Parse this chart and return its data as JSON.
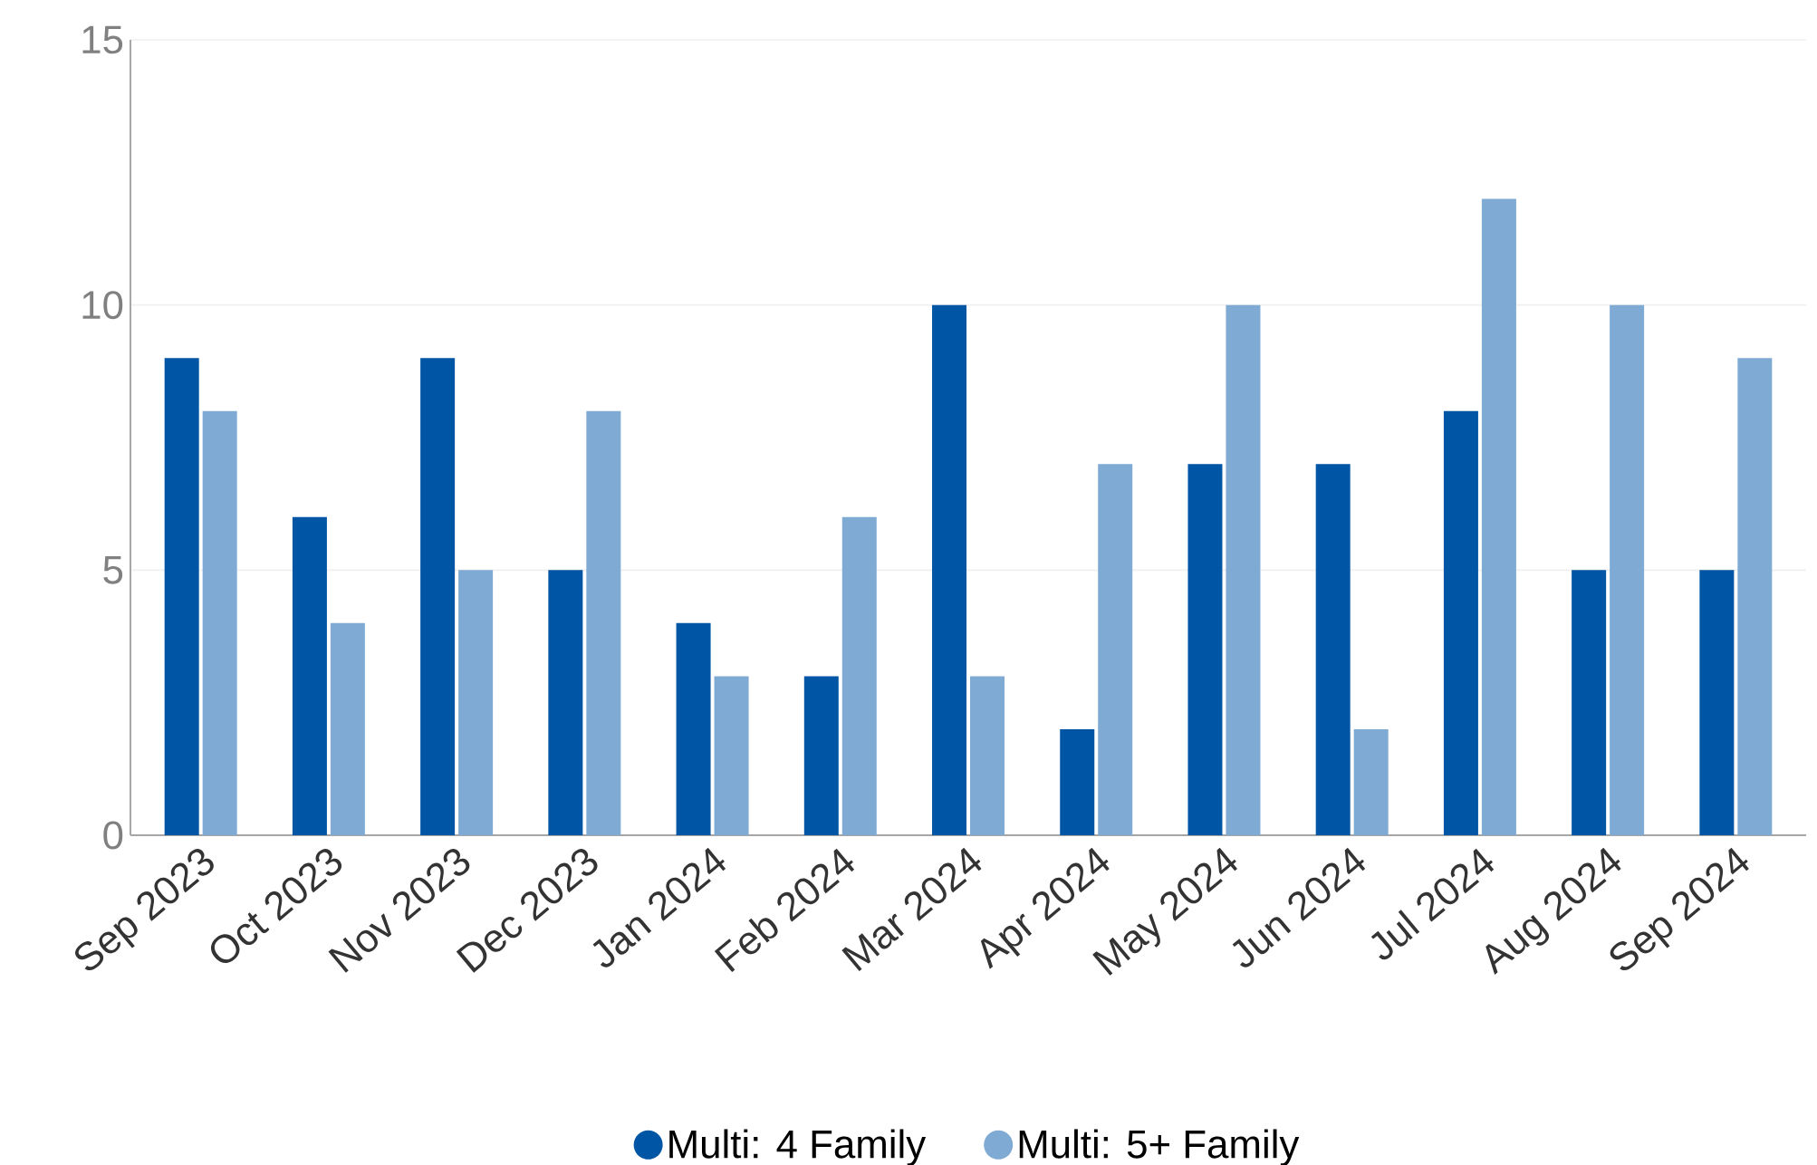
{
  "chart_data": {
    "type": "bar",
    "categories": [
      "Sep 2023",
      "Oct 2023",
      "Nov 2023",
      "Dec 2023",
      "Jan 2024",
      "Feb 2024",
      "Mar 2024",
      "Apr 2024",
      "May 2024",
      "Jun 2024",
      "Jul 2024",
      "Aug 2024",
      "Sep 2024"
    ],
    "series": [
      {
        "name": "Multi: 4 Family",
        "color": "#0055a5",
        "values": [
          9,
          6,
          9,
          5,
          4,
          3,
          10,
          2,
          7,
          7,
          8,
          5,
          5
        ]
      },
      {
        "name": "Multi: 5+ Family",
        "color": "#7eaad4",
        "values": [
          8,
          4,
          5,
          8,
          3,
          6,
          3,
          7,
          10,
          2,
          12,
          10,
          9
        ]
      }
    ],
    "ylim": [
      0,
      15
    ],
    "yticks": [
      0,
      5,
      10,
      15
    ],
    "grid": "y",
    "legend": "bottom"
  }
}
